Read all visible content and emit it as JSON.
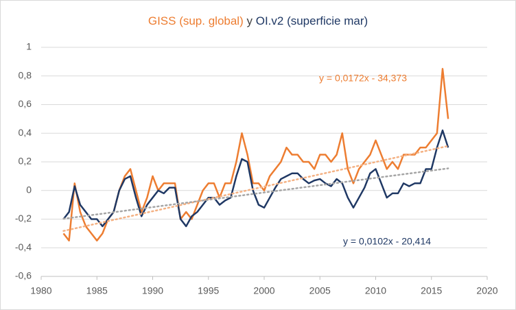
{
  "chart_data": {
    "type": "line",
    "title": [
      "GISS (sup. global)",
      "y",
      "OI.v2 (superficie mar)"
    ],
    "x": [
      1982.0,
      1982.5,
      1983.0,
      1983.5,
      1984.0,
      1984.5,
      1985.0,
      1985.5,
      1986.0,
      1986.5,
      1987.0,
      1987.5,
      1988.0,
      1988.5,
      1989.0,
      1989.5,
      1990.0,
      1990.5,
      1991.0,
      1991.5,
      1992.0,
      1992.5,
      1993.0,
      1993.5,
      1994.0,
      1994.5,
      1995.0,
      1995.5,
      1996.0,
      1996.5,
      1997.0,
      1997.5,
      1998.0,
      1998.5,
      1999.0,
      1999.5,
      2000.0,
      2000.5,
      2001.0,
      2001.5,
      2002.0,
      2002.5,
      2003.0,
      2003.5,
      2004.0,
      2004.5,
      2005.0,
      2005.5,
      2006.0,
      2006.5,
      2007.0,
      2007.5,
      2008.0,
      2008.5,
      2009.0,
      2009.5,
      2010.0,
      2010.5,
      2011.0,
      2011.5,
      2012.0,
      2012.5,
      2013.0,
      2013.5,
      2014.0,
      2014.5,
      2015.0,
      2015.5,
      2016.0,
      2016.5
    ],
    "series": [
      {
        "name": "GISS (sup. global)",
        "color": "#ed7d31",
        "values": [
          -0.3,
          -0.35,
          0.05,
          -0.15,
          -0.25,
          -0.3,
          -0.35,
          -0.3,
          -0.2,
          -0.15,
          0.0,
          0.1,
          0.15,
          0.0,
          -0.15,
          -0.05,
          0.1,
          0.0,
          0.05,
          0.05,
          0.05,
          -0.2,
          -0.15,
          -0.2,
          -0.1,
          0.0,
          0.05,
          0.05,
          -0.05,
          0.05,
          0.05,
          0.2,
          0.4,
          0.25,
          0.05,
          0.05,
          0.0,
          0.1,
          0.15,
          0.2,
          0.3,
          0.25,
          0.25,
          0.2,
          0.2,
          0.15,
          0.25,
          0.25,
          0.2,
          0.25,
          0.4,
          0.15,
          0.05,
          0.15,
          0.2,
          0.25,
          0.35,
          0.25,
          0.15,
          0.2,
          0.15,
          0.25,
          0.25,
          0.25,
          0.3,
          0.3,
          0.35,
          0.4,
          0.85,
          0.5
        ]
      },
      {
        "name": "OI.v2 (superficie mar)",
        "color": "#1f3864",
        "values": [
          -0.2,
          -0.15,
          0.03,
          -0.1,
          -0.15,
          -0.2,
          -0.2,
          -0.25,
          -0.2,
          -0.15,
          0.0,
          0.08,
          0.1,
          -0.05,
          -0.18,
          -0.1,
          -0.05,
          0.0,
          -0.02,
          0.02,
          0.02,
          -0.2,
          -0.25,
          -0.18,
          -0.15,
          -0.1,
          -0.05,
          -0.05,
          -0.1,
          -0.07,
          -0.05,
          0.1,
          0.22,
          0.2,
          0.0,
          -0.1,
          -0.12,
          -0.05,
          0.02,
          0.08,
          0.1,
          0.12,
          0.12,
          0.08,
          0.05,
          0.07,
          0.08,
          0.05,
          0.03,
          0.08,
          0.05,
          -0.05,
          -0.12,
          -0.05,
          0.02,
          0.12,
          0.15,
          0.05,
          -0.05,
          -0.02,
          -0.02,
          0.05,
          0.03,
          0.05,
          0.05,
          0.15,
          0.15,
          0.3,
          0.42,
          0.3
        ]
      }
    ],
    "trendlines": [
      {
        "slope": 0.0172,
        "intercept": -34.373,
        "label": "y = 0,0172x - 34,373",
        "color": "#f4b183",
        "label_color": "#ed7d31"
      },
      {
        "slope": 0.0102,
        "intercept": -20.414,
        "label": "y = 0,0102x - 20,414",
        "color": "#a5a5a5",
        "label_color": "#1f3864"
      }
    ],
    "xlim": [
      1980,
      2020
    ],
    "xticks": [
      1980,
      1985,
      1990,
      1995,
      2000,
      2005,
      2010,
      2015,
      2020
    ],
    "ylim": [
      -0.6,
      1
    ],
    "yticks": [
      {
        "value": -0.6,
        "label": "-0,6"
      },
      {
        "value": -0.4,
        "label": "-0,4"
      },
      {
        "value": -0.2,
        "label": "-0,2"
      },
      0,
      {
        "value": 0.2,
        "label": "0,2"
      },
      {
        "value": 0.4,
        "label": "0,4"
      },
      {
        "value": 0.6,
        "label": "0,6"
      },
      {
        "value": 0.8,
        "label": "0,8"
      },
      1
    ],
    "grid": true
  }
}
